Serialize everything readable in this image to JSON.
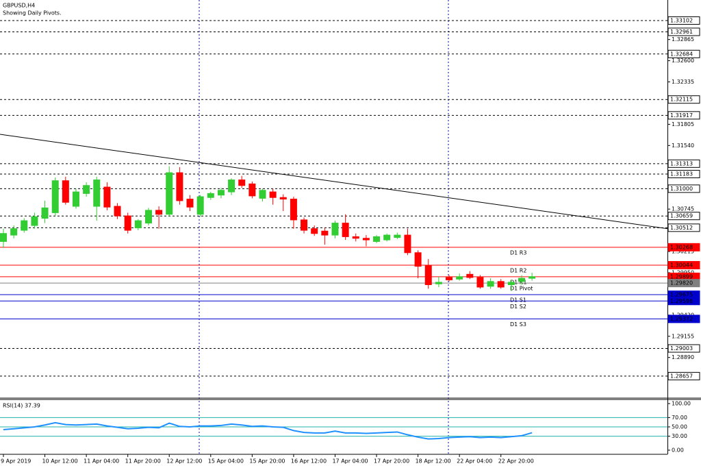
{
  "chart_data": [
    {
      "type": "candlestick",
      "title": "GBPUSD,H4",
      "subtitle": "Showing Daily Pivots.",
      "categories": [
        "9 Apr 2019",
        null,
        null,
        null,
        "10 Apr 12:00",
        null,
        null,
        null,
        "11 Apr 04:00",
        null,
        null,
        null,
        "11 Apr 20:00",
        null,
        null,
        null,
        "12 Apr 12:00",
        null,
        null,
        null,
        "15 Apr 04:00",
        null,
        null,
        null,
        "15 Apr 20:00",
        null,
        null,
        null,
        "16 Apr 12:00",
        null,
        null,
        null,
        "17 Apr 04:00",
        null,
        null,
        null,
        "17 Apr 20:00",
        null,
        null,
        null,
        "18 Apr 12:00",
        null,
        null,
        null,
        "22 Apr 04:00",
        null,
        null,
        null,
        "22 Apr 20:00",
        null,
        null,
        null
      ],
      "open": [
        1.3034,
        1.3042,
        1.3048,
        1.3054,
        1.3063,
        1.307,
        1.311,
        1.3078,
        1.3094,
        1.3078,
        1.3102,
        1.3078,
        1.3066,
        1.3051,
        1.3057,
        1.3073,
        1.3068,
        1.312,
        1.3087,
        1.3068,
        1.3089,
        1.3092,
        1.3096,
        1.3111,
        1.3106,
        1.3088,
        1.3096,
        1.3089,
        1.3087,
        1.3061,
        1.305,
        1.3047,
        1.3042,
        1.3057,
        1.304,
        1.3038,
        1.3034,
        1.3036,
        1.3039,
        1.3042,
        1.302,
        1.3004,
        1.2981,
        1.2989,
        1.2987,
        1.2993,
        1.2989,
        1.2978,
        1.2984,
        1.298,
        1.2984,
        1.2988
      ],
      "high": [
        1.305,
        1.3054,
        1.3063,
        1.307,
        1.3085,
        1.3114,
        1.3115,
        1.31,
        1.3108,
        1.3115,
        1.3108,
        1.3082,
        1.307,
        1.3062,
        1.3076,
        1.3078,
        1.3128,
        1.3127,
        1.3092,
        1.3092,
        1.3096,
        1.3101,
        1.3113,
        1.3116,
        1.3109,
        1.31,
        1.31,
        1.3093,
        1.309,
        1.3064,
        1.3054,
        1.3051,
        1.306,
        1.3068,
        1.3044,
        1.3042,
        1.3042,
        1.3044,
        1.3045,
        1.305,
        1.3023,
        1.3012,
        1.299,
        1.2992,
        1.2994,
        1.2997,
        1.2992,
        1.2988,
        1.2987,
        1.2986,
        1.2992,
        1.2995
      ],
      "low": [
        1.3026,
        1.3038,
        1.3045,
        1.305,
        1.3057,
        1.3066,
        1.308,
        1.3075,
        1.309,
        1.306,
        1.3073,
        1.3062,
        1.3044,
        1.3048,
        1.3054,
        1.305,
        1.3065,
        1.308,
        1.3072,
        1.3065,
        1.3086,
        1.3088,
        1.3092,
        1.3101,
        1.3088,
        1.3084,
        1.308,
        1.3072,
        1.305,
        1.3044,
        1.3041,
        1.303,
        1.3038,
        1.3036,
        1.3034,
        1.3028,
        1.3032,
        1.3034,
        1.3037,
        1.3017,
        1.2988,
        1.2975,
        1.2977,
        1.2984,
        1.2985,
        1.2987,
        1.2975,
        1.2975,
        1.2975,
        1.2972,
        1.298,
        1.2985
      ],
      "close": [
        1.3044,
        1.305,
        1.306,
        1.3065,
        1.3076,
        1.311,
        1.3083,
        1.3096,
        1.3104,
        1.3111,
        1.3077,
        1.3066,
        1.3048,
        1.306,
        1.3073,
        1.3068,
        1.312,
        1.3085,
        1.3077,
        1.309,
        1.3094,
        1.3098,
        1.3111,
        1.3104,
        1.3091,
        1.3098,
        1.3089,
        1.3087,
        1.3061,
        1.3048,
        1.3044,
        1.3042,
        1.3057,
        1.304,
        1.3038,
        1.3036,
        1.304,
        1.3042,
        1.3042,
        1.302,
        1.3003,
        1.298,
        1.2983,
        1.2986,
        1.299,
        1.2989,
        1.2977,
        1.2984,
        1.2977,
        1.2983,
        1.2988,
        1.299
      ],
      "up_color": "#32cd32",
      "down_color": "#ff0000",
      "ylim": [
        1.28382,
        1.33359
      ],
      "yticks": [
        1.32865,
        {
          "value": 1.326,
          "label": "1.32600"
        },
        1.32335,
        1.31805,
        {
          "value": 1.3154,
          "label": "1.31540"
        },
        1.30745,
        1.30215,
        {
          "value": 1.2995,
          "label": "1.29950"
        },
        {
          "value": 1.2942,
          "label": "1.29420"
        },
        1.29155,
        {
          "value": 1.2889,
          "label": "1.28890"
        }
      ],
      "levels": [
        {
          "value": 1.33102,
          "color": "#000000",
          "style": "dash"
        },
        {
          "value": 1.32961,
          "color": "#000000",
          "style": "dash"
        },
        {
          "value": 1.32684,
          "color": "#000000",
          "style": "dash"
        },
        {
          "value": 1.32115,
          "color": "#000000",
          "style": "dash"
        },
        {
          "value": 1.31917,
          "color": "#000000",
          "style": "dash"
        },
        {
          "value": 1.31313,
          "color": "#000000",
          "style": "dash"
        },
        {
          "value": 1.31183,
          "color": "#000000",
          "style": "dash"
        },
        {
          "value": 1.31,
          "label": "1.31000",
          "color": "#000000",
          "style": "dash"
        },
        {
          "value": 1.30659,
          "color": "#000000",
          "style": "dash"
        },
        {
          "value": 1.30512,
          "color": "#000000",
          "style": "dash"
        },
        {
          "value": 1.30268,
          "name": "D1 R3",
          "color": "#ff0000",
          "style": "solid"
        },
        {
          "value": 1.30044,
          "name": "D1 R2",
          "color": "#ff0000",
          "style": "solid"
        },
        {
          "value": 1.29899,
          "name": "D1 R1",
          "color": "#ff0000",
          "style": "solid"
        },
        {
          "value": 1.2982,
          "label": "1.29820",
          "name": "D1 Pivot",
          "color": "#808080",
          "style": "solid"
        },
        {
          "value": 1.29675,
          "name": "D1 S1",
          "color": "#0000cd",
          "style": "solid"
        },
        {
          "value": 1.29596,
          "name": "D1 S2",
          "color": "#0000cd",
          "style": "solid"
        },
        {
          "value": 1.29372,
          "name": "D1 S3",
          "color": "#0000cd",
          "style": "solid"
        },
        {
          "value": 1.29003,
          "color": "#000000",
          "style": "dash"
        },
        {
          "value": 1.28657,
          "color": "#000000",
          "style": "dash"
        }
      ],
      "trendline": {
        "color": "#000000",
        "values": [
          1.3168,
          1.305
        ]
      }
    },
    {
      "type": "line",
      "title": "RSI(14) 37.39",
      "color": "#1e90ff",
      "values": [
        44,
        46,
        48,
        50,
        54,
        59,
        55,
        54,
        55,
        56,
        52,
        49,
        46,
        47,
        49,
        48,
        58,
        51,
        50,
        52,
        52,
        53,
        56,
        54,
        51,
        52,
        50,
        49,
        42,
        38,
        37,
        37,
        41,
        37,
        37,
        36,
        37,
        38,
        39,
        33,
        28,
        24,
        25,
        27,
        28,
        29,
        27,
        28,
        27,
        29,
        31,
        37.39
      ],
      "ylim": [
        -7.4,
        108.8
      ],
      "yticks": [
        {
          "value": 100,
          "label": "100.00"
        },
        {
          "value": 70,
          "label": "70.00"
        },
        {
          "value": 50,
          "label": "50.00"
        },
        {
          "value": 30,
          "label": "30.00"
        },
        {
          "value": 0,
          "label": "0.00"
        }
      ],
      "level_color": "#20b2aa"
    }
  ]
}
